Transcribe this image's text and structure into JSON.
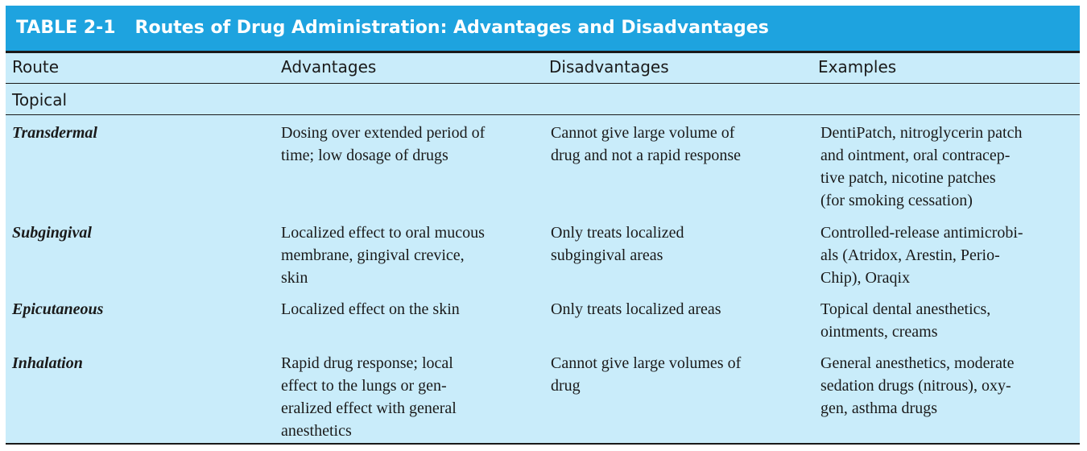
{
  "table": {
    "label": "TABLE 2-1",
    "title": "Routes of Drug Administration: Advantages and Disadvantages"
  },
  "columns": [
    "Route",
    "Advantages",
    "Disadvantages",
    "Examples"
  ],
  "section": "Topical",
  "rows": [
    {
      "route": "Transdermal",
      "advantages": [
        "Dosing over extended period of",
        "time; low dosage of drugs"
      ],
      "disadvantages": [
        "Cannot give large volume of",
        "drug and not a rapid response"
      ],
      "examples": [
        "DentiPatch, nitroglycerin patch",
        "and ointment, oral contracep-",
        "tive patch, nicotine patches",
        "(for smoking cessation)"
      ]
    },
    {
      "route": "Subgingival",
      "advantages": [
        "Localized effect to oral mucous",
        "membrane, gingival crevice,",
        "skin"
      ],
      "disadvantages": [
        "Only treats localized",
        "subgingival areas"
      ],
      "examples": [
        "Controlled-release antimicrobi-",
        "als (Atridox, Arestin, Perio-",
        "Chip), Oraqix"
      ]
    },
    {
      "route": "Epicutaneous",
      "advantages": [
        "Localized effect on the skin"
      ],
      "disadvantages": [
        "Only treats localized areas"
      ],
      "examples": [
        "Topical dental anesthetics,",
        "ointments, creams"
      ]
    },
    {
      "route": "Inhalation",
      "advantages": [
        "Rapid drug response; local",
        "effect to the lungs or gen-",
        "eralized effect with general",
        "anesthetics"
      ],
      "disadvantages": [
        "Cannot give large volumes of",
        "drug"
      ],
      "examples": [
        "General anesthetics, moderate",
        "sedation drugs (nitrous), oxy-",
        "gen, asthma drugs"
      ]
    }
  ],
  "colors": {
    "title_bar": "#1ea3df",
    "table_background": "#c9ecfa",
    "text": "#1a1a1a"
  }
}
